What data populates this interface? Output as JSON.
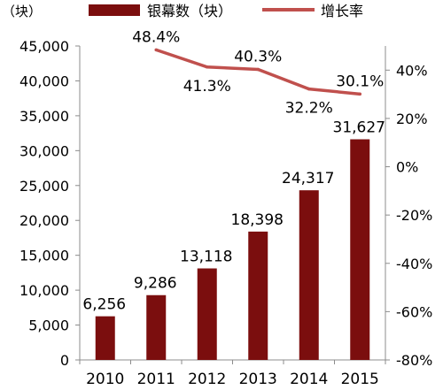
{
  "chart_data": {
    "type": "bar",
    "categories": [
      "2010",
      "2011",
      "2012",
      "2013",
      "2014",
      "2015"
    ],
    "series": [
      {
        "name": "银幕数（块）",
        "type": "bar",
        "axis": "left",
        "values": [
          6256,
          9286,
          13118,
          18398,
          24317,
          31627
        ],
        "labels": [
          "6,256",
          "9,286",
          "13,118",
          "18,398",
          "24,317",
          "31,627"
        ],
        "color": "#7b0e0e"
      },
      {
        "name": "增长率",
        "type": "line",
        "axis": "right",
        "values": [
          null,
          48.4,
          41.3,
          40.3,
          32.2,
          30.1
        ],
        "labels": [
          "",
          "48.4%",
          "41.3%",
          "40.3%",
          "32.2%",
          "30.1%"
        ],
        "color": "#c0504d"
      }
    ],
    "unit_label": "（块）",
    "y_left": {
      "min": 0,
      "max": 45000,
      "step": 5000,
      "tick_labels": [
        "0",
        "5,000",
        "10,000",
        "15,000",
        "20,000",
        "25,000",
        "30,000",
        "35,000",
        "40,000",
        "45,000"
      ]
    },
    "y_right": {
      "min": -80,
      "max": 50,
      "step": 20,
      "tick_labels": [
        "-80%",
        "-60%",
        "-40%",
        "-20%",
        "0%",
        "20%",
        "40%"
      ]
    },
    "legend_position": "top",
    "grid": false
  }
}
